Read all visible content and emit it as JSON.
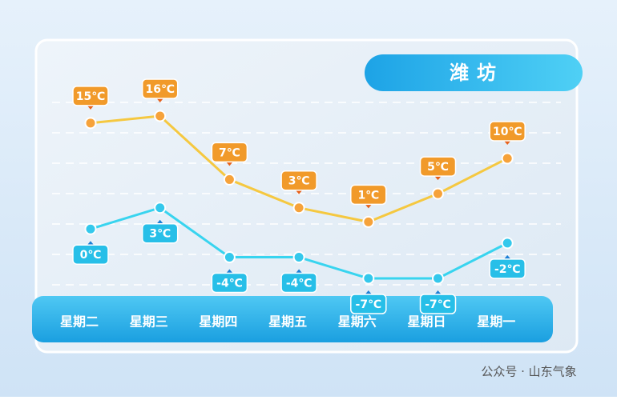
{
  "chart_data": {
    "type": "line",
    "title": "潍坊",
    "source": "公众号 · 山东气象",
    "categories": [
      "星期二",
      "星期三",
      "星期四",
      "星期五",
      "星期六",
      "星期日",
      "星期一"
    ],
    "series": [
      {
        "color": "#f5c840",
        "values": [
          15,
          16,
          7,
          3,
          1,
          5,
          10
        ],
        "value_labels": [
          "15℃",
          "16℃",
          "7℃",
          "3℃",
          "1℃",
          "5℃",
          "10℃"
        ]
      },
      {
        "color": "#38d4ef",
        "values": [
          0,
          3,
          -4,
          -4,
          -7,
          -7,
          -2
        ],
        "value_labels": [
          "0℃",
          "3℃",
          "-4℃",
          "-4℃",
          "-7℃",
          "-7℃",
          "-2℃"
        ]
      }
    ]
  }
}
